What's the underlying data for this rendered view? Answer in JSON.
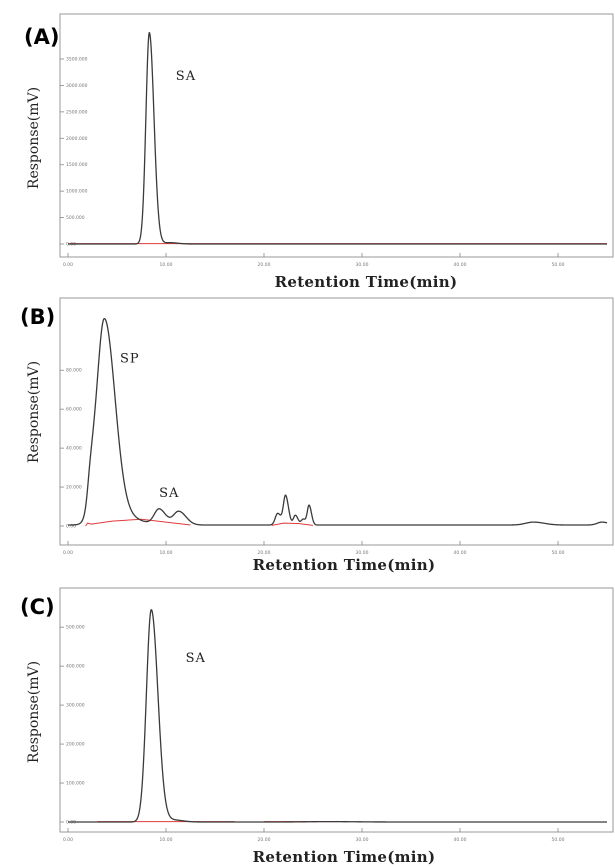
{
  "chart_data": [
    {
      "type": "line",
      "panel": "(A)",
      "xlabel": "Retention Time(min)",
      "ylabel": "Response(mV)",
      "x_ticks": [
        "0.00",
        "10.00",
        "20.00",
        "30.00",
        "40.00",
        "50.00"
      ],
      "y_ticks": [
        "0.00",
        "500.000",
        "1000.000",
        "1500.000",
        "2000.000",
        "2500.000",
        "3000.000",
        "3500.000"
      ],
      "xlim": [
        0,
        55
      ],
      "ylim": [
        0,
        4200
      ],
      "annotations": [
        {
          "text": "SA",
          "x": 11,
          "y": 3100
        }
      ],
      "series": [
        {
          "type": "peaks",
          "baseline": 0,
          "peaks": [
            [
              8.3,
              4000,
              0.35
            ],
            [
              10.4,
              25,
              0.6
            ]
          ]
        }
      ],
      "baselines": [
        {
          "x": [
            0,
            55
          ],
          "y": [
            8,
            8
          ]
        }
      ]
    },
    {
      "type": "line",
      "panel": "(B)",
      "xlabel": "Retention Time(min)",
      "ylabel": "Response(mV)",
      "x_ticks": [
        "0.00",
        "10.00",
        "20.00",
        "30.00",
        "40.00",
        "50.00"
      ],
      "y_ticks": [
        "0.00",
        "20.000",
        "40.000",
        "60.000",
        "80.000"
      ],
      "xlim": [
        0,
        55
      ],
      "ylim": [
        -3,
        110
      ],
      "annotations": [
        {
          "text": "SP",
          "x": 5.3,
          "y": 84
        },
        {
          "text": "SA",
          "x": 9.3,
          "y": 15
        }
      ],
      "series": [
        {
          "type": "peaks",
          "baseline": 0.5,
          "peaks": [
            [
              2.3,
              13,
              0.3
            ],
            [
              3.7,
              105,
              0.8
            ],
            [
              5.7,
              4,
              1.2
            ],
            [
              9.3,
              8,
              0.5
            ],
            [
              11.3,
              7,
              0.55
            ],
            [
              21.4,
              6,
              0.25
            ],
            [
              22.2,
              15,
              0.22
            ],
            [
              23.2,
              5,
              0.2
            ],
            [
              24.0,
              3,
              0.2
            ],
            [
              24.6,
              10,
              0.18
            ],
            [
              47.5,
              1.5,
              0.8
            ],
            [
              54.5,
              1.5,
              0.5
            ]
          ]
        }
      ],
      "baselines": [
        {
          "x": [
            1.8,
            2.0,
            2.4,
            4.5,
            7.5,
            12.5
          ],
          "y": [
            0,
            1.5,
            1,
            2.5,
            3.5,
            0.5
          ]
        },
        {
          "x": [
            20.8,
            22.0,
            23.5,
            25.0
          ],
          "y": [
            0.3,
            1.5,
            1.3,
            0.3
          ]
        }
      ]
    },
    {
      "type": "line",
      "panel": "(C)",
      "xlabel": "Retention Time(min)",
      "ylabel": "Response(mV)",
      "x_ticks": [
        "0.00",
        "10.00",
        "20.00",
        "30.00",
        "40.00",
        "50.00"
      ],
      "y_ticks": [
        "0.00",
        "100.000",
        "200.000",
        "300.000",
        "400.000",
        "500.000"
      ],
      "xlim": [
        0,
        55
      ],
      "ylim": [
        -10,
        570
      ],
      "annotations": [
        {
          "text": "SA",
          "x": 12,
          "y": 410
        }
      ],
      "series": [
        {
          "type": "peaks",
          "baseline": 0,
          "peaks": [
            [
              8.5,
              545,
              0.5
            ],
            [
              10.8,
              5,
              0.7
            ],
            [
              26.5,
              1,
              2
            ]
          ]
        }
      ],
      "baselines": [
        {
          "x": [
            3,
            17
          ],
          "y": [
            1,
            1
          ]
        },
        {
          "x": [
            20,
            28.5
          ],
          "y": [
            1,
            1
          ]
        }
      ]
    }
  ]
}
